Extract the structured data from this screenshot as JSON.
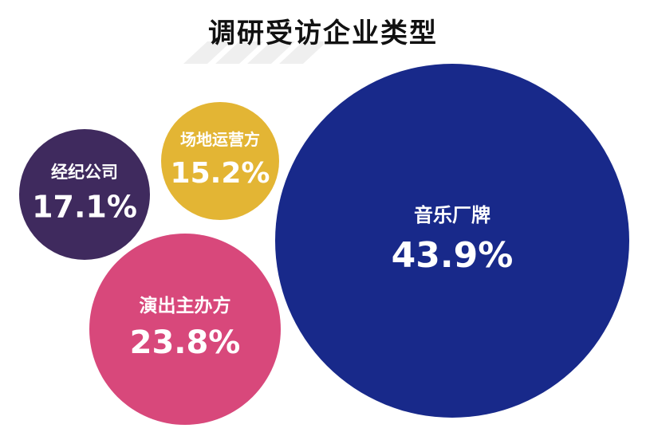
{
  "chart_data": {
    "type": "bubble",
    "title": "调研受访企业类型",
    "series": [
      {
        "category": "经纪公司",
        "value": 17.1,
        "value_label": "17.1%",
        "color": "#3f2a5e"
      },
      {
        "category": "场地运营方",
        "value": 15.2,
        "value_label": "15.2%",
        "color": "#e3b534"
      },
      {
        "category": "演出主办方",
        "value": 23.8,
        "value_label": "23.8%",
        "color": "#d8487b"
      },
      {
        "category": "音乐厂牌",
        "value": 43.9,
        "value_label": "43.9%",
        "color": "#18298a"
      }
    ],
    "legend": "none",
    "grid": false
  }
}
